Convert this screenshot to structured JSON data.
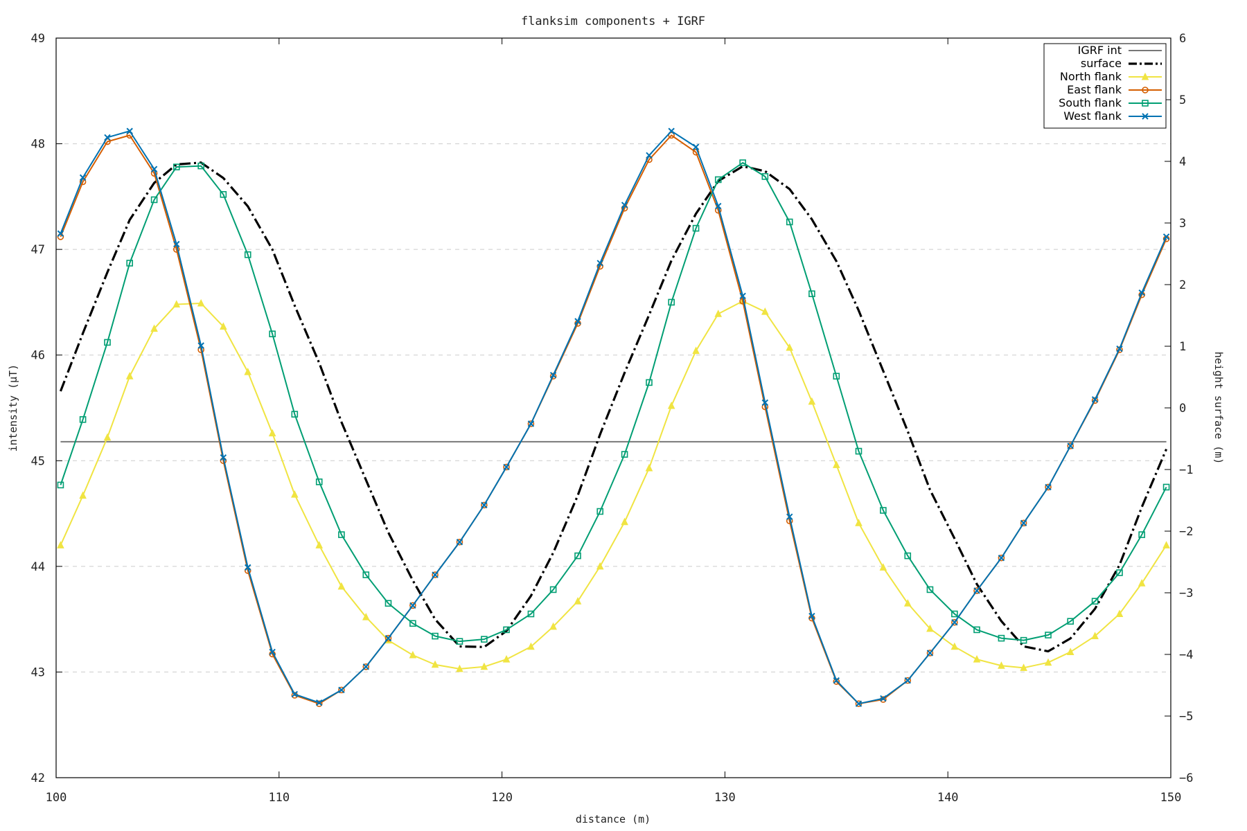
{
  "chart_data": {
    "type": "line",
    "title": "flanksim components + IGRF",
    "xlabel": "distance (m)",
    "ylabel": "intensity (μT)",
    "y2label": "height surface (m)",
    "xlim": [
      100,
      150
    ],
    "ylim": [
      42,
      49
    ],
    "y2lim": [
      -6,
      6
    ],
    "xticks": [
      100,
      110,
      120,
      130,
      140,
      150
    ],
    "yticks": [
      42,
      43,
      44,
      45,
      46,
      47,
      48,
      49
    ],
    "y2ticks": [
      -6,
      -5,
      -4,
      -3,
      -2,
      -1,
      0,
      1,
      2,
      3,
      4,
      5,
      6
    ],
    "grid": "horizontal dashed at y ticks",
    "legend_position": "top-right",
    "x": [
      100.2,
      101.2,
      102.3,
      103.3,
      104.4,
      105.4,
      106.5,
      107.5,
      108.6,
      109.7,
      110.7,
      111.8,
      112.8,
      113.9,
      114.9,
      116.0,
      117.0,
      118.1,
      119.2,
      120.2,
      121.3,
      122.3,
      123.4,
      124.4,
      125.5,
      126.6,
      127.6,
      128.7,
      129.7,
      130.8,
      131.8,
      132.9,
      133.9,
      135.0,
      136.0,
      137.1,
      138.2,
      139.2,
      140.3,
      141.3,
      142.4,
      143.4,
      144.5,
      145.5,
      146.6,
      147.7,
      148.7,
      149.8
    ],
    "series": [
      {
        "name": "IGRF int",
        "axis": "y1",
        "color": "#777777",
        "style": "solid",
        "marker": "none",
        "values": [
          45.18,
          45.18,
          45.18,
          45.18,
          45.18,
          45.18,
          45.18,
          45.18,
          45.18,
          45.18,
          45.18,
          45.18,
          45.18,
          45.18,
          45.18,
          45.18,
          45.18,
          45.18,
          45.18,
          45.18,
          45.18,
          45.18,
          45.18,
          45.18,
          45.18,
          45.18,
          45.18,
          45.18,
          45.18,
          45.18,
          45.18,
          45.18,
          45.18,
          45.18,
          45.18,
          45.18,
          45.18,
          45.18,
          45.18,
          45.18,
          45.18,
          45.18,
          45.18,
          45.18,
          45.18,
          45.18,
          45.18,
          45.18
        ]
      },
      {
        "name": "surface",
        "axis": "y2",
        "color": "#000000",
        "style": "dashdot",
        "marker": "none",
        "values": [
          0.27,
          1.21,
          2.2,
          3.05,
          3.65,
          3.95,
          3.98,
          3.73,
          3.27,
          2.57,
          1.66,
          0.73,
          -0.23,
          -1.17,
          -2.02,
          -2.8,
          -3.43,
          -3.87,
          -3.88,
          -3.62,
          -3.05,
          -2.35,
          -1.42,
          -0.43,
          0.57,
          1.51,
          2.39,
          3.15,
          3.68,
          3.92,
          3.84,
          3.55,
          3.06,
          2.38,
          1.58,
          0.6,
          -0.38,
          -1.33,
          -2.12,
          -2.86,
          -3.46,
          -3.87,
          -3.95,
          -3.74,
          -3.26,
          -2.55,
          -1.61,
          -0.67
        ]
      },
      {
        "name": "North flank",
        "axis": "y1",
        "color": "#f0e442",
        "style": "solid",
        "marker": "triangle",
        "values": [
          44.2,
          44.67,
          45.22,
          45.8,
          46.25,
          46.48,
          46.49,
          46.27,
          45.84,
          45.26,
          44.68,
          44.2,
          43.81,
          43.52,
          43.3,
          43.16,
          43.07,
          43.03,
          43.05,
          43.12,
          43.24,
          43.43,
          43.67,
          44.0,
          44.42,
          44.93,
          45.52,
          46.04,
          46.39,
          46.51,
          46.41,
          46.07,
          45.56,
          44.96,
          44.41,
          43.99,
          43.65,
          43.41,
          43.24,
          43.12,
          43.06,
          43.04,
          43.09,
          43.19,
          43.34,
          43.55,
          43.84,
          44.2
        ]
      },
      {
        "name": "East flank",
        "axis": "y1",
        "color": "#d55e00",
        "style": "solid",
        "marker": "circle",
        "values": [
          47.12,
          47.64,
          48.02,
          48.08,
          47.72,
          47.0,
          46.05,
          45.0,
          43.96,
          43.17,
          42.78,
          42.7,
          42.83,
          43.05,
          43.32,
          43.63,
          43.92,
          44.23,
          44.58,
          44.94,
          45.35,
          45.8,
          46.3,
          46.84,
          47.39,
          47.85,
          48.08,
          47.92,
          47.37,
          46.51,
          45.51,
          44.43,
          43.51,
          42.91,
          42.7,
          42.74,
          42.92,
          43.18,
          43.47,
          43.77,
          44.08,
          44.41,
          44.75,
          45.14,
          45.57,
          46.05,
          46.57,
          47.1
        ]
      },
      {
        "name": "South flank",
        "axis": "y1",
        "color": "#009e73",
        "style": "solid",
        "marker": "square",
        "values": [
          44.77,
          45.39,
          46.12,
          46.87,
          47.47,
          47.78,
          47.79,
          47.52,
          46.95,
          46.2,
          45.44,
          44.8,
          44.3,
          43.92,
          43.65,
          43.46,
          43.34,
          43.29,
          43.31,
          43.4,
          43.55,
          43.78,
          44.1,
          44.52,
          45.06,
          45.74,
          46.5,
          47.2,
          47.66,
          47.82,
          47.69,
          47.26,
          46.58,
          45.8,
          45.09,
          44.53,
          44.1,
          43.78,
          43.55,
          43.4,
          43.32,
          43.3,
          43.35,
          43.48,
          43.67,
          43.94,
          44.3,
          44.75
        ]
      },
      {
        "name": "West flank",
        "axis": "y1",
        "color": "#0072b2",
        "style": "solid",
        "marker": "x",
        "values": [
          47.15,
          47.68,
          48.06,
          48.12,
          47.76,
          47.05,
          46.09,
          45.03,
          43.99,
          43.19,
          42.79,
          42.71,
          42.83,
          43.05,
          43.32,
          43.63,
          43.92,
          44.23,
          44.58,
          44.94,
          45.35,
          45.81,
          46.32,
          46.87,
          47.42,
          47.89,
          48.12,
          47.97,
          47.41,
          46.56,
          45.55,
          44.47,
          43.53,
          42.92,
          42.7,
          42.75,
          42.92,
          43.18,
          43.47,
          43.77,
          44.08,
          44.41,
          44.75,
          45.14,
          45.58,
          46.06,
          46.59,
          47.12
        ]
      }
    ]
  }
}
